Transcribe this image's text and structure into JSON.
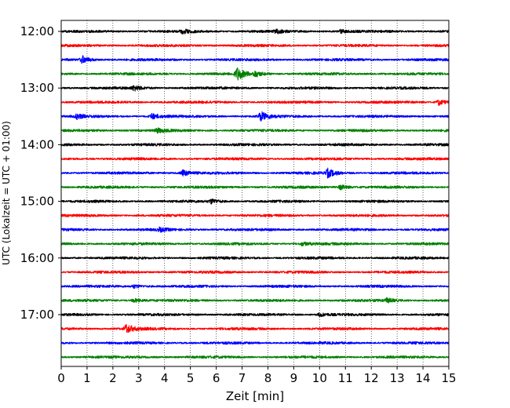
{
  "chart_data": {
    "type": "line",
    "xlabel": "Zeit  [min]",
    "ylabel": "UTC (Lokalzeit = UTC + 01:00)",
    "xlim": [
      0,
      15
    ],
    "x_ticks": [
      "0",
      "1",
      "2",
      "3",
      "4",
      "5",
      "6",
      "7",
      "8",
      "9",
      "10",
      "11",
      "12",
      "13",
      "14",
      "15"
    ],
    "y_ticks": [
      "12:00",
      "13:00",
      "14:00",
      "15:00",
      "16:00",
      "17:00"
    ],
    "grid": "vertical dotted at each minute",
    "trace_colors": [
      "#000000",
      "#ff0000",
      "#0000ff",
      "#008000"
    ],
    "traces": [
      {
        "start": "12:00",
        "color": "#000000",
        "events": [
          {
            "t": 4.7,
            "amp": 1.2
          },
          {
            "t": 8.3,
            "amp": 1.0
          },
          {
            "t": 10.8,
            "amp": 1.0
          }
        ]
      },
      {
        "start": "12:15",
        "color": "#ff0000",
        "events": []
      },
      {
        "start": "12:30",
        "color": "#0000ff",
        "events": [
          {
            "t": 0.8,
            "amp": 2.2
          }
        ]
      },
      {
        "start": "12:45",
        "color": "#008000",
        "events": [
          {
            "t": 6.8,
            "amp": 4.0
          },
          {
            "t": 7.5,
            "amp": 1.6
          }
        ]
      },
      {
        "start": "13:00",
        "color": "#000000",
        "events": [
          {
            "t": 2.8,
            "amp": 1.5
          }
        ]
      },
      {
        "start": "13:15",
        "color": "#ff0000",
        "events": [
          {
            "t": 14.6,
            "amp": 1.8
          }
        ]
      },
      {
        "start": "13:30",
        "color": "#0000ff",
        "events": [
          {
            "t": 0.6,
            "amp": 1.4
          },
          {
            "t": 3.5,
            "amp": 1.8
          },
          {
            "t": 7.7,
            "amp": 3.0
          }
        ]
      },
      {
        "start": "13:45",
        "color": "#008000",
        "events": [
          {
            "t": 3.7,
            "amp": 1.3
          }
        ]
      },
      {
        "start": "14:00",
        "color": "#000000",
        "events": []
      },
      {
        "start": "14:15",
        "color": "#ff0000",
        "events": []
      },
      {
        "start": "14:30",
        "color": "#0000ff",
        "events": [
          {
            "t": 4.7,
            "amp": 2.0
          },
          {
            "t": 10.3,
            "amp": 2.6
          }
        ]
      },
      {
        "start": "14:45",
        "color": "#008000",
        "events": [
          {
            "t": 10.8,
            "amp": 1.5
          }
        ]
      },
      {
        "start": "15:00",
        "color": "#000000",
        "events": [
          {
            "t": 5.8,
            "amp": 1.3
          }
        ]
      },
      {
        "start": "15:15",
        "color": "#ff0000",
        "events": []
      },
      {
        "start": "15:30",
        "color": "#0000ff",
        "events": [
          {
            "t": 3.8,
            "amp": 1.0
          }
        ]
      },
      {
        "start": "15:45",
        "color": "#008000",
        "events": [
          {
            "t": 9.3,
            "amp": 1.0
          }
        ]
      },
      {
        "start": "16:00",
        "color": "#000000",
        "events": []
      },
      {
        "start": "16:15",
        "color": "#ff0000",
        "events": []
      },
      {
        "start": "16:30",
        "color": "#0000ff",
        "events": [
          {
            "t": 2.8,
            "amp": 1.0
          }
        ]
      },
      {
        "start": "16:45",
        "color": "#008000",
        "events": [
          {
            "t": 2.8,
            "amp": 1.2
          },
          {
            "t": 12.6,
            "amp": 1.2
          }
        ]
      },
      {
        "start": "17:00",
        "color": "#000000",
        "events": [
          {
            "t": 10.0,
            "amp": 1.1
          }
        ]
      },
      {
        "start": "17:15",
        "color": "#ff0000",
        "events": [
          {
            "t": 2.5,
            "amp": 2.8
          }
        ]
      },
      {
        "start": "17:30",
        "color": "#0000ff",
        "events": []
      },
      {
        "start": "17:45",
        "color": "#008000",
        "events": []
      }
    ]
  }
}
